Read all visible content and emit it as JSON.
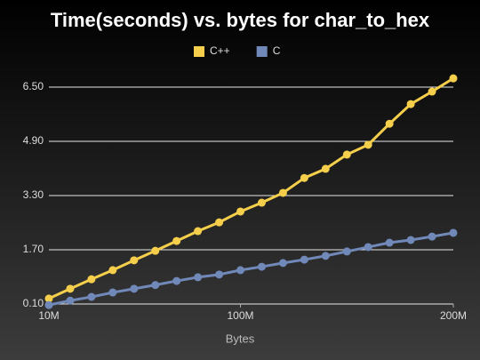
{
  "chart_data": {
    "type": "line",
    "title": "Time(seconds) vs. bytes for char_to_hex",
    "x_label": "Bytes",
    "x": [
      10000000,
      20000000,
      30000000,
      40000000,
      50000000,
      60000000,
      70000000,
      80000000,
      90000000,
      100000000,
      110000000,
      120000000,
      130000000,
      140000000,
      150000000,
      160000000,
      170000000,
      180000000,
      190000000,
      200000000
    ],
    "series": [
      {
        "name": "C++",
        "color": "#f5cf4b",
        "values": [
          0.26,
          0.55,
          0.83,
          1.1,
          1.39,
          1.67,
          1.96,
          2.25,
          2.51,
          2.83,
          3.09,
          3.38,
          3.82,
          4.09,
          4.51,
          4.8,
          5.42,
          6.0,
          6.37,
          6.76
        ]
      },
      {
        "name": "C",
        "color": "#7089b9",
        "values": [
          0.07,
          0.2,
          0.31,
          0.44,
          0.55,
          0.66,
          0.78,
          0.89,
          0.97,
          1.1,
          1.2,
          1.31,
          1.41,
          1.52,
          1.65,
          1.78,
          1.91,
          1.99,
          2.09,
          2.2
        ]
      }
    ],
    "xlim": [
      10000000,
      200000000
    ],
    "xticks": [
      {
        "value": 10000000,
        "label": "10M"
      },
      {
        "value": 100000000,
        "label": "100M"
      },
      {
        "value": 200000000,
        "label": "200M"
      }
    ],
    "ylim": [
      0.1,
      7.0
    ],
    "yticks": [
      {
        "value": 0.1,
        "label": "0.10"
      },
      {
        "value": 1.7,
        "label": "1.70"
      },
      {
        "value": 3.3,
        "label": "3.30"
      },
      {
        "value": 4.9,
        "label": "4.90"
      },
      {
        "value": 6.5,
        "label": "6.50"
      }
    ],
    "grid": true,
    "legend": "top"
  }
}
